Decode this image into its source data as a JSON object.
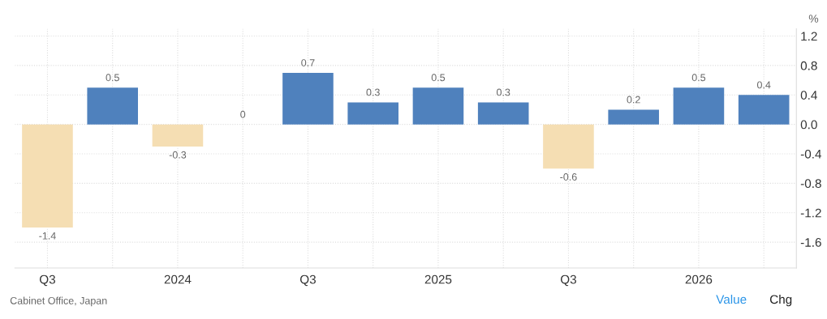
{
  "chart_data": {
    "type": "bar",
    "categories": [
      "Q3",
      null,
      "2024",
      null,
      "Q3",
      null,
      "2025",
      null,
      "Q3",
      null,
      "2026",
      null
    ],
    "values": [
      -1.4,
      0.5,
      -0.3,
      0,
      0.7,
      0.3,
      0.5,
      0.3,
      -0.6,
      0.2,
      0.5,
      0.4
    ],
    "colors": [
      "#f5deb3",
      "#4f81bd",
      "#f5deb3",
      "#4f81bd",
      "#4f81bd",
      "#4f81bd",
      "#4f81bd",
      "#4f81bd",
      "#f5deb3",
      "#4f81bd",
      "#4f81bd",
      "#4f81bd"
    ],
    "ylabel": "%",
    "ylim": [
      -1.95,
      1.3
    ],
    "yticks": [
      {
        "value": 1.2,
        "label": "1.2"
      },
      {
        "value": 0.8,
        "label": "0.8"
      },
      {
        "value": 0.4,
        "label": "0.4"
      },
      {
        "value": 0,
        "label": "0.0"
      },
      {
        "value": -0.4,
        "label": "-0.4"
      },
      {
        "value": -0.8,
        "label": "-0.8"
      },
      {
        "value": -1.2,
        "label": "-1.2"
      },
      {
        "value": -1.6,
        "label": "-1.6"
      }
    ],
    "data_labels": true,
    "grid": true,
    "annotations": [
      "Cabinet Office, Japan",
      "Value",
      "Chg"
    ]
  }
}
